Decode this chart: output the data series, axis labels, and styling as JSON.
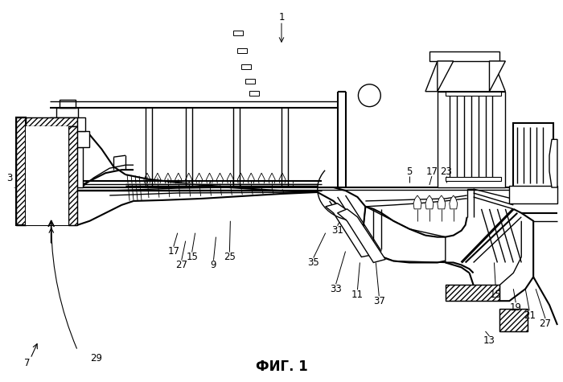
{
  "title": "ФИГ. 1",
  "background_color": "#ffffff",
  "line_color": "#1a1a1a",
  "label_fontsize": 8.5,
  "title_fontsize": 12
}
